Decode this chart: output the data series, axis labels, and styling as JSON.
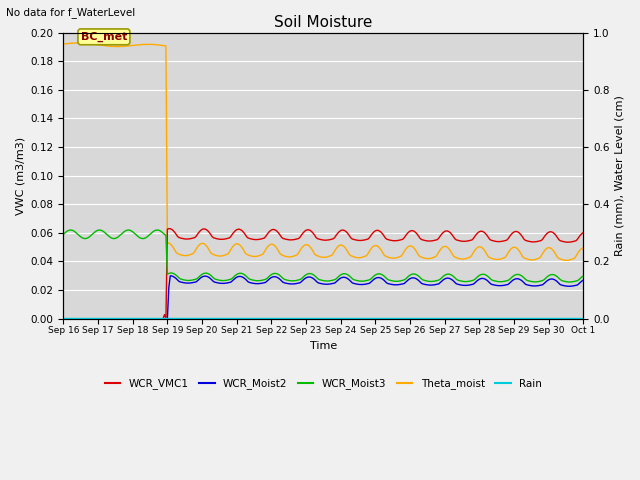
{
  "title": "Soil Moisture",
  "top_left_text": "No data for f_WaterLevel",
  "xlabel": "Time",
  "ylabel_left": "VWC (m3/m3)",
  "ylabel_right": "Rain (mm), Water Level (cm)",
  "ylim_left": [
    0.0,
    0.2
  ],
  "ylim_right": [
    0.0,
    1.0
  ],
  "yticks_left": [
    0.0,
    0.02,
    0.04,
    0.06,
    0.08,
    0.1,
    0.12,
    0.14,
    0.16,
    0.18,
    0.2
  ],
  "yticks_right": [
    0.0,
    0.2,
    0.4,
    0.6,
    0.8,
    1.0
  ],
  "xtick_labels": [
    "Sep 16",
    "Sep 17",
    "Sep 18",
    "Sep 19",
    "Sep 20",
    "Sep 21",
    "Sep 22",
    "Sep 23",
    "Sep 24",
    "Sep 25",
    "Sep 26",
    "Sep 27",
    "Sep 28",
    "Sep 29",
    "Sep 30",
    "Oct 1"
  ],
  "annotation_text": "BC_met",
  "colors": {
    "WCR_VMC1": "#dd0000",
    "WCR_Moist2": "#0000dd",
    "WCR_Moist3": "#00bb00",
    "Theta_moist": "#ffaa00",
    "Rain": "#00ccdd"
  },
  "background_color": "#d8d8d8",
  "grid_color": "#ffffff",
  "figsize": [
    6.4,
    4.8
  ],
  "dpi": 100
}
